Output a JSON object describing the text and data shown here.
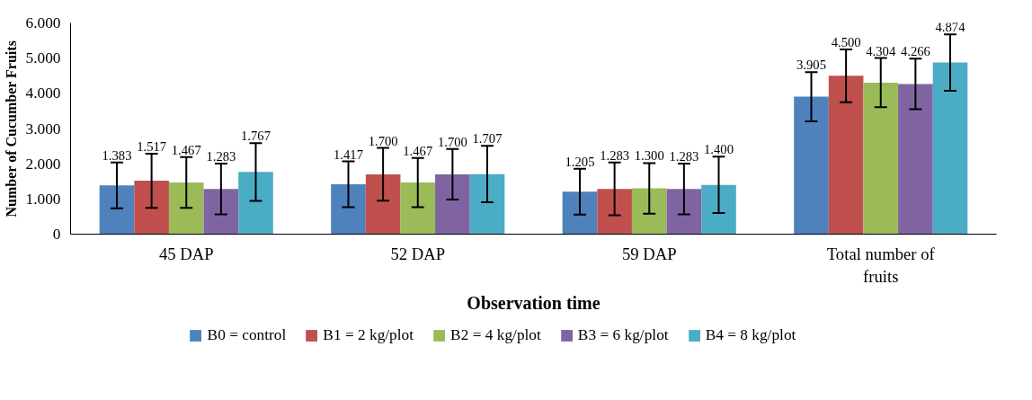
{
  "chart_data": {
    "type": "bar",
    "xlabel": "Observation time",
    "ylabel": "Number of Cucumber Fruits",
    "categories": [
      "45 DAP",
      "52 DAP",
      "59 DAP",
      "Total number of fruits"
    ],
    "series": [
      {
        "name": "B0 = control",
        "color": "#4f81bd",
        "values": [
          1383,
          1417,
          1205,
          3905
        ],
        "value_labels": [
          "1.383",
          "1.417",
          "1.205",
          "3.905"
        ],
        "errors": [
          650,
          650,
          650,
          700
        ]
      },
      {
        "name": "B1 = 2 kg/plot",
        "color": "#c0504d",
        "values": [
          1517,
          1700,
          1283,
          4500
        ],
        "value_labels": [
          "1.517",
          "1.700",
          "1.283",
          "4.500"
        ],
        "errors": [
          770,
          750,
          750,
          750
        ]
      },
      {
        "name": "B2 = 4 kg/plot",
        "color": "#9bbb59",
        "values": [
          1467,
          1467,
          1300,
          4304
        ],
        "value_labels": [
          "1.467",
          "1.467",
          "1.300",
          "4.304"
        ],
        "errors": [
          720,
          700,
          720,
          700
        ]
      },
      {
        "name": "B3 = 6 kg/plot",
        "color": "#8064a2",
        "values": [
          1283,
          1700,
          1283,
          4266
        ],
        "value_labels": [
          "1.283",
          "1.700",
          "1.283",
          "4.266"
        ],
        "errors": [
          720,
          720,
          720,
          720
        ]
      },
      {
        "name": "B4 = 8 kg/plot",
        "color": "#4bacc6",
        "values": [
          1767,
          1707,
          1400,
          4874
        ],
        "value_labels": [
          "1.767",
          "1.707",
          "1.400",
          "4.874"
        ],
        "errors": [
          820,
          800,
          800,
          800
        ]
      }
    ],
    "ylim": [
      0,
      6000
    ],
    "yticks": [
      0,
      {
        "value": 1000,
        "label": "1.000"
      },
      {
        "value": 2000,
        "label": "2.000"
      },
      {
        "value": 3000,
        "label": "3.000"
      },
      {
        "value": 4000,
        "label": "4.000"
      },
      {
        "value": 5000,
        "label": "5.000"
      },
      {
        "value": 6000,
        "label": "6.000"
      }
    ],
    "grid": false,
    "legend": "bottom"
  }
}
